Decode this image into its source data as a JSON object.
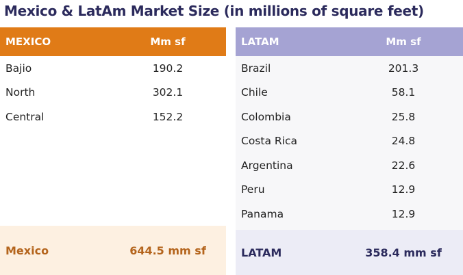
{
  "header": {
    "title": "Mexico & LatAm Market Size (in millions of square feet)"
  },
  "mexico": {
    "columns": [
      "MEXICO",
      "Mm sf"
    ],
    "rows": [
      [
        "Bajio",
        190.2
      ],
      [
        "North",
        302.1
      ],
      [
        "Central",
        152.2
      ]
    ],
    "total": {
      "label": "Mexico",
      "value": "644.5 mm sf"
    }
  },
  "latam": {
    "columns": [
      "LATAM",
      "Mm sf"
    ],
    "rows": [
      [
        "Brazil",
        201.3
      ],
      [
        "Chile",
        58.1
      ],
      [
        "Colombia",
        25.8
      ],
      [
        "Costa Rica",
        24.8
      ],
      [
        "Argentina",
        22.6
      ],
      [
        "Peru",
        12.9
      ],
      [
        "Panama",
        12.9
      ]
    ],
    "total": {
      "label": "LATAM",
      "value": "358.4 mm sf"
    }
  }
}
